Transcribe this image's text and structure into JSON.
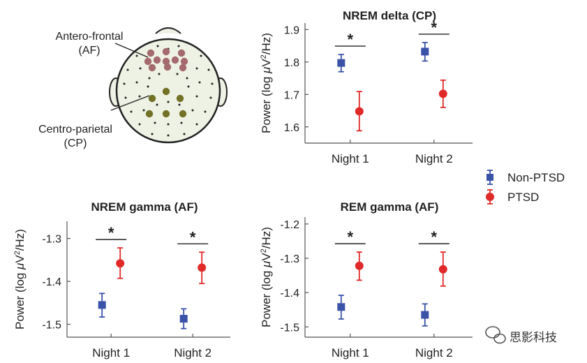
{
  "head_diagram": {
    "label_af_line1": "Antero-frontal",
    "label_af_line2": "(AF)",
    "label_cp_line1": "Centro-parietal",
    "label_cp_line2": "(CP)",
    "af_color": "#a46a6e",
    "cp_color": "#737126"
  },
  "legend": {
    "items": [
      {
        "label": "Non-PTSD",
        "color": "#3a52a8",
        "marker": "square"
      },
      {
        "label": "PTSD",
        "color": "#e02a2a",
        "marker": "circle"
      }
    ]
  },
  "watermark": {
    "text": "思影科技"
  },
  "chart_data": [
    {
      "type": "scatter",
      "title": "NREM delta (CP)",
      "ylabel": "Power (log μV²/Hz)",
      "ylabel_main": "Power (log ",
      "ylabel_unit": "V",
      "ylabel_tail": "/Hz)",
      "categories": [
        "Night 1",
        "Night 2"
      ],
      "ylim": [
        1.55,
        1.92
      ],
      "yticks": [
        1.6,
        1.7,
        1.8,
        1.9
      ],
      "ytick_labels": [
        "1.6",
        "1.7",
        "1.8",
        "1.9"
      ],
      "series": [
        {
          "name": "Non-PTSD",
          "values": [
            1.797,
            1.832
          ],
          "err_low": [
            1.77,
            1.803
          ],
          "err_high": [
            1.823,
            1.86
          ]
        },
        {
          "name": "PTSD",
          "values": [
            1.648,
            1.702
          ],
          "err_low": [
            1.588,
            1.66
          ],
          "err_high": [
            1.709,
            1.744
          ]
        }
      ],
      "significance": [
        "*",
        "*"
      ]
    },
    {
      "type": "scatter",
      "title": "NREM gamma (AF)",
      "ylabel": "Power (log μV²/Hz)",
      "ylabel_main": "Power (log ",
      "ylabel_unit": "V",
      "ylabel_tail": "/Hz)",
      "categories": [
        "Night 1",
        "Night 2"
      ],
      "ylim": [
        -1.53,
        -1.26
      ],
      "yticks": [
        -1.5,
        -1.4,
        -1.3
      ],
      "ytick_labels": [
        "-1.5",
        "-1.4",
        "-1.3"
      ],
      "series": [
        {
          "name": "Non-PTSD",
          "values": [
            -1.455,
            -1.487
          ],
          "err_low": [
            -1.483,
            -1.51
          ],
          "err_high": [
            -1.428,
            -1.464
          ]
        },
        {
          "name": "PTSD",
          "values": [
            -1.358,
            -1.368
          ],
          "err_low": [
            -1.393,
            -1.405
          ],
          "err_high": [
            -1.322,
            -1.332
          ]
        }
      ],
      "significance": [
        "*",
        "*"
      ]
    },
    {
      "type": "scatter",
      "title": "REM gamma (AF)",
      "ylabel": "Power (log μV²/Hz)",
      "ylabel_main": "Power (log ",
      "ylabel_unit": "V",
      "ylabel_tail": "/Hz)",
      "categories": [
        "Night 1",
        "Night 2"
      ],
      "ylim": [
        -1.53,
        -1.18
      ],
      "yticks": [
        -1.5,
        -1.4,
        -1.3,
        -1.2
      ],
      "ytick_labels": [
        "-1.5",
        "-1.4",
        "-1.3",
        "-1.2"
      ],
      "series": [
        {
          "name": "Non-PTSD",
          "values": [
            -1.442,
            -1.465
          ],
          "err_low": [
            -1.477,
            -1.497
          ],
          "err_high": [
            -1.408,
            -1.433
          ]
        },
        {
          "name": "PTSD",
          "values": [
            -1.322,
            -1.332
          ],
          "err_low": [
            -1.364,
            -1.381
          ],
          "err_high": [
            -1.282,
            -1.282
          ]
        }
      ],
      "significance": [
        "*",
        "*"
      ]
    }
  ]
}
